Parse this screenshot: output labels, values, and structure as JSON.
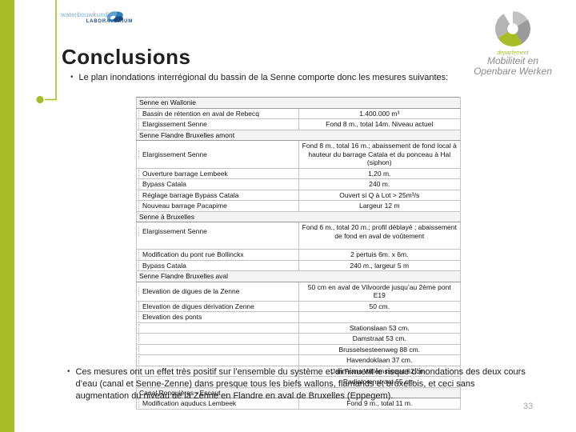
{
  "slide": {
    "title": "Conclusions",
    "page_number": "33",
    "bullet_intro": "Le plan inondations interrégional du bassin de la Senne comporte donc les mesures suivantes:",
    "bullet_conclusion": "Ces mesures ont un effet très positif sur l’ensemble du système et diminuent le risque d’inondations des deux cours d’eau (canal et Senne-Zenne) dans presque tous les biefs wallons, flamands et bruxellois, et ceci sans augmentation du niveau de la Zenne en Flandre en aval de Bruxelles (Eppegem)."
  },
  "logos": {
    "waterbouwkundig": {
      "line1": "waterbouwkundig",
      "line2": "LABORATORIUM"
    },
    "departement": {
      "small": "departement",
      "line1": "Mobiliteit en",
      "line2": "Openbare Werken"
    }
  },
  "colors": {
    "accent_green": "#a6bd28",
    "logo_blue_light": "#79aed6",
    "logo_blue_dark": "#23508f",
    "pinwheel_gray": "#9b9b9b",
    "pinwheel_gray_light": "#c2c2c2",
    "page_number_gray": "#a6a6a6"
  },
  "table": {
    "sections": [
      {
        "title": "Senne en Wallonie",
        "rows": [
          {
            "label": "Bassin de rétention en aval de Rebecq",
            "value": "1.400.000 m³"
          },
          {
            "label": "Elargissement Senne",
            "value": "Fond 8 m., total 14m.  Niveau actuel"
          }
        ]
      },
      {
        "title": "Senne Flandre Bruxelles amont",
        "rows": [
          {
            "label": "Elargissement Senne",
            "value": "Fond 8 m., total 16 m.; abaissement de fond local à hauteur du barrage Catala et du ponceau à Hal (siphon)"
          },
          {
            "label": "Ouverture barrage Lembeek",
            "value": "1,20 m."
          },
          {
            "label": "Bypass Catala",
            "value": "240 m."
          },
          {
            "label": "Réglage barrage Bypass Catala",
            "value": "Ouvert si Q à Lot > 25m³/s"
          },
          {
            "label": "Nouveau barrage Pacapime",
            "value": "Largeur 12 m"
          }
        ]
      },
      {
        "title": "Senne à Bruxelles",
        "rows": [
          {
            "label": "Elargissement Senne",
            "value": "Fond 6 m., total 20 m.; profil déblayé ; abaissement de fond en aval de voûtement",
            "pad": true
          },
          {
            "label": "Modification du pont rue Bollinckx",
            "value": "2 pertuis 6m. x 6m."
          },
          {
            "label": "Bypass Catala",
            "value": "240 m., largeur 5 m"
          }
        ]
      },
      {
        "title": "Senne Flandre Bruxelles aval",
        "rows": [
          {
            "label": "Elevation de digues de la Zenne",
            "value": "50 cm  en aval de Vilvoorde jusqu’au 2ème pont  E19"
          },
          {
            "label": "Elevation de digues dérivation Zenne",
            "value": "50 cm."
          },
          {
            "label": "Elevation des ponts",
            "value": ""
          },
          {
            "label": "",
            "value": "Stationslaan 53 cm."
          },
          {
            "label": "",
            "value": "Damstraat 53 cm."
          },
          {
            "label": "",
            "value": "Brusselsesteenweg 88 cm."
          },
          {
            "label": "",
            "value": "Havendoklaan 37 cm."
          },
          {
            "label": "",
            "value": "Jan Frans Willemsstraat 62 cm."
          },
          {
            "label": "",
            "value": "Radiatorenstraat 65 cm."
          }
        ]
      },
      {
        "title": "Canal Ronquières - Escaut",
        "rows": [
          {
            "label": "Modification aquducs Lembeek",
            "value": "Fond 9 m., total  11 m."
          }
        ]
      }
    ]
  }
}
